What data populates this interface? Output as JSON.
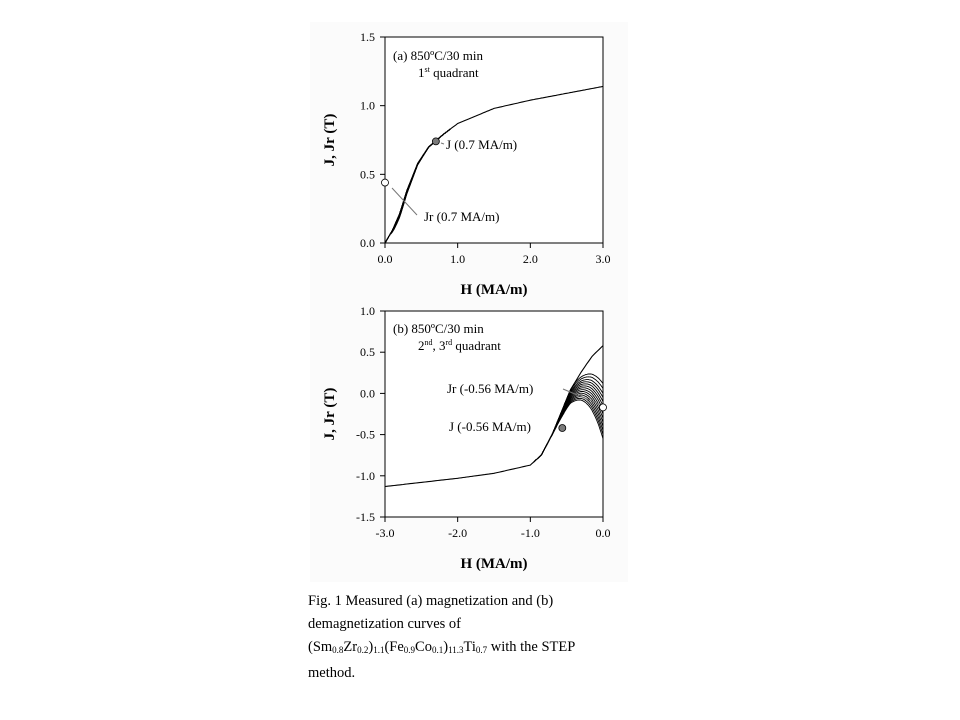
{
  "figure": {
    "panel_a": {
      "label_line1": "(a) 850ºC/30 min",
      "label_line2_pre": "1",
      "label_line2_sup": "st",
      "label_line2_post": " quadrant",
      "annotation_j": "J (0.7 MA/m)",
      "annotation_jr": "Jr (0.7 MA/m)"
    },
    "panel_b": {
      "label_line1": "(b) 850ºC/30 min",
      "label_line2_a": "2",
      "label_line2_a_sup": "nd",
      "label_line2_b": ", 3",
      "label_line2_b_sup": "rd",
      "label_line2_c": " quadrant",
      "annotation_jr": "Jr (-0.56 MA/m)",
      "annotation_j": "J (-0.56 MA/m)"
    },
    "ylabel": "J, Jr (T)",
    "xlabel": "H (MA/m)"
  },
  "caption": {
    "line1": "Fig.  1 Measured (a) magnetization  and (b)",
    "line2": "demagnetization  curves  of",
    "line3_parts": [
      "(Sm",
      "0.8",
      "Zr",
      "0.2",
      ")",
      "1.1",
      "(Fe",
      "0.9",
      "Co",
      "0.1",
      ")",
      "11.3",
      "Ti",
      "0.7",
      " with the STEP"
    ],
    "line4": "method."
  },
  "chart_data": [
    {
      "type": "line",
      "title": "(a) 850ºC/30 min 1st quadrant",
      "xlabel": "H (MA/m)",
      "ylabel": "J, Jr (T)",
      "xlim": [
        0,
        3.0
      ],
      "ylim": [
        0,
        1.5
      ],
      "xticks": [
        "0.0",
        "1.0",
        "2.0",
        "3.0"
      ],
      "yticks": [
        "0.0",
        "0.5",
        "1.0",
        "1.5"
      ],
      "grid": false,
      "curve_count": 14,
      "envelope_points": [
        [
          0.0,
          0.0
        ],
        [
          0.1,
          0.09
        ],
        [
          0.2,
          0.21
        ],
        [
          0.3,
          0.38
        ],
        [
          0.45,
          0.58
        ],
        [
          0.6,
          0.7
        ],
        [
          0.8,
          0.79
        ],
        [
          1.0,
          0.87
        ],
        [
          1.5,
          0.98
        ],
        [
          2.0,
          1.04
        ],
        [
          2.5,
          1.09
        ],
        [
          3.0,
          1.14
        ]
      ],
      "recoil_start_J": [
        0.06,
        0.09,
        0.12,
        0.15,
        0.18,
        0.21,
        0.25,
        0.29,
        0.34,
        0.38,
        0.42,
        0.46,
        0.5,
        0.54
      ],
      "marked_points": [
        {
          "name": "J (0.7 MA/m)",
          "x": 0.7,
          "y": 0.74
        },
        {
          "name": "Jr (0.7 MA/m)",
          "x": 0.0,
          "y": 0.44
        }
      ]
    },
    {
      "type": "line",
      "title": "(b) 850ºC/30 min 2nd, 3rd quadrant",
      "xlabel": "H (MA/m)",
      "ylabel": "J, Jr (T)",
      "xlim": [
        -3.0,
        0.0
      ],
      "ylim": [
        -1.5,
        1.0
      ],
      "xticks": [
        "-3.0",
        "-2.0",
        "-1.0",
        "0.0"
      ],
      "yticks": [
        "-1.5",
        "-1.0",
        "-0.5",
        "0.0",
        "0.5",
        "1.0"
      ],
      "grid": false,
      "curve_count": 14,
      "envelope_points": [
        [
          0.0,
          0.58
        ],
        [
          -0.15,
          0.45
        ],
        [
          -0.3,
          0.26
        ],
        [
          -0.45,
          0.04
        ],
        [
          -0.56,
          -0.2
        ],
        [
          -0.7,
          -0.5
        ],
        [
          -0.85,
          -0.75
        ],
        [
          -1.0,
          -0.87
        ],
        [
          -1.5,
          -0.97
        ],
        [
          -2.0,
          -1.03
        ],
        [
          -2.5,
          -1.08
        ],
        [
          -3.0,
          -1.13
        ]
      ],
      "recoil_end_J": [
        -0.55,
        -0.5,
        -0.45,
        -0.4,
        -0.35,
        -0.3,
        -0.25,
        -0.2,
        -0.15,
        -0.1,
        -0.05,
        0.0,
        0.06,
        0.12
      ],
      "marked_points": [
        {
          "name": "Jr (-0.56 MA/m)",
          "x": 0.0,
          "y": -0.17
        },
        {
          "name": "J (-0.56 MA/m)",
          "x": -0.56,
          "y": -0.42
        }
      ]
    }
  ]
}
